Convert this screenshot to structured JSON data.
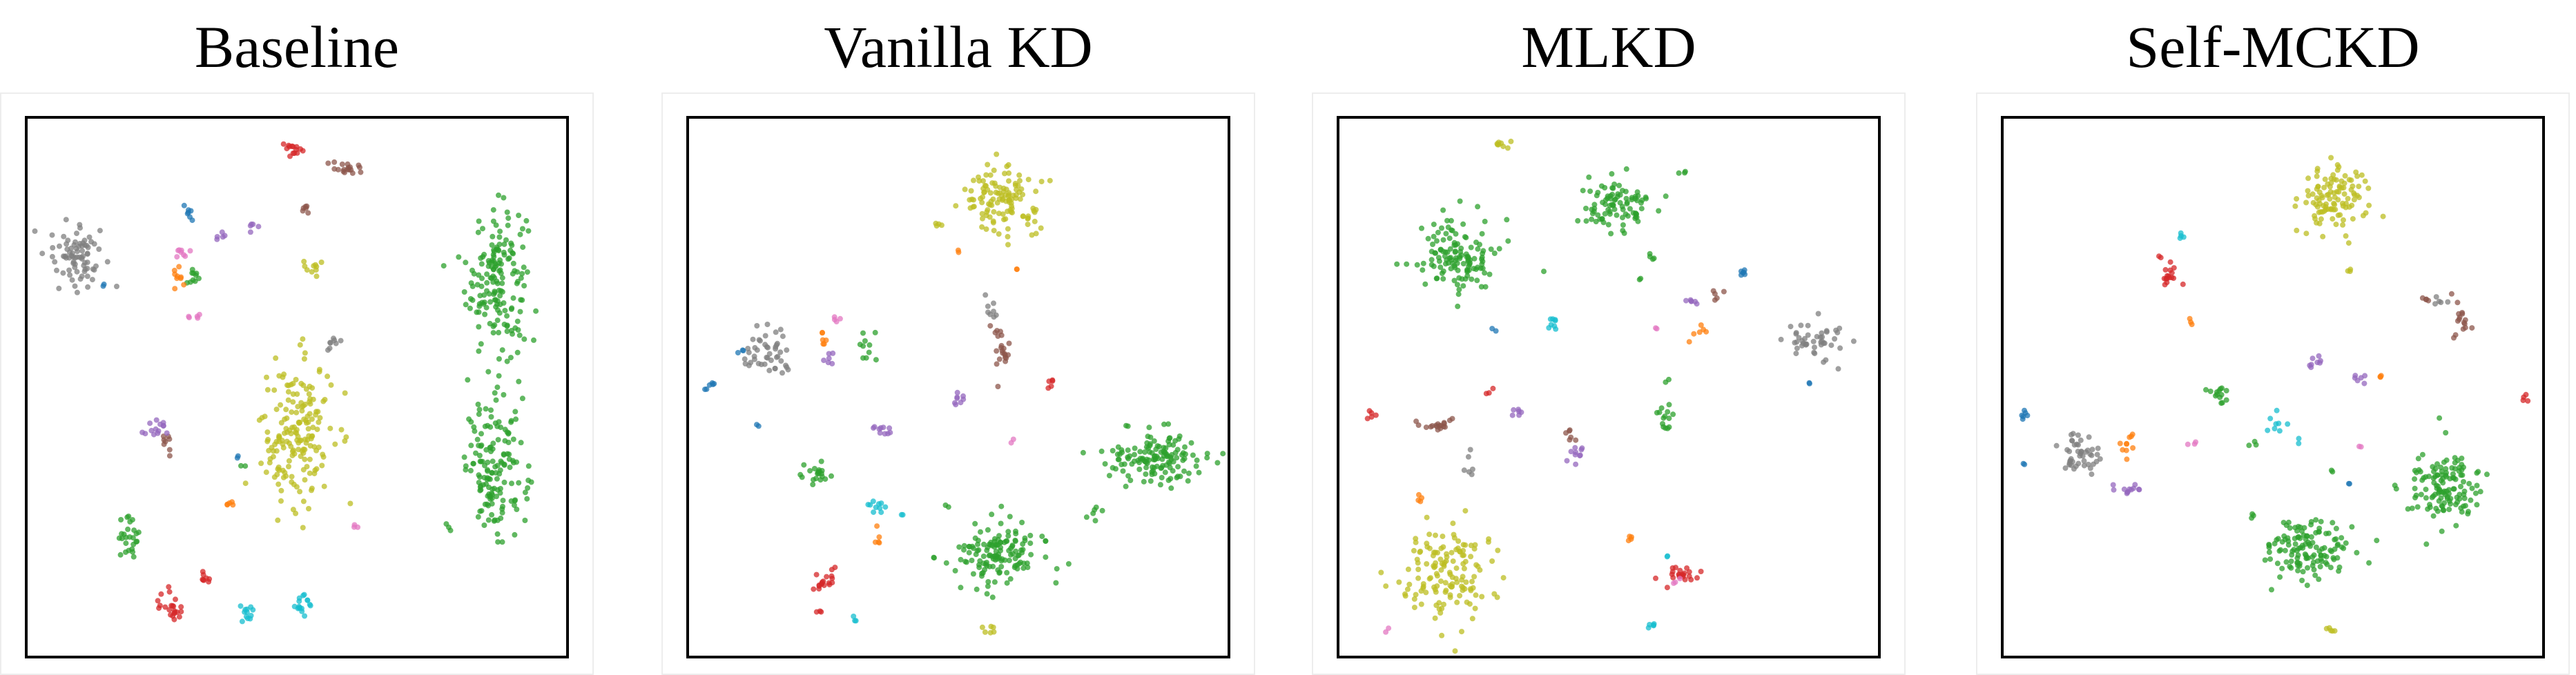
{
  "chart_data": [
    {
      "type": "scatter",
      "title": "Baseline",
      "xlim": [
        0,
        100
      ],
      "ylim": [
        0,
        100
      ],
      "grid": false,
      "ticks": false,
      "clusters": [
        {
          "color": "#2ca02c",
          "cx": 87,
          "cy": 70,
          "sx": 2.8,
          "sy": 7,
          "n": 170
        },
        {
          "color": "#2ca02c",
          "cx": 87,
          "cy": 35,
          "sx": 2.8,
          "sy": 6,
          "n": 150
        },
        {
          "color": "#bcbd22",
          "cx": 50,
          "cy": 41,
          "sx": 3.3,
          "sy": 7,
          "n": 180
        },
        {
          "color": "#7f7f7f",
          "cx": 9,
          "cy": 75,
          "sx": 2.6,
          "sy": 3,
          "n": 80
        },
        {
          "color": "#d62728",
          "cx": 27,
          "cy": 9,
          "sx": 1.3,
          "sy": 1.4,
          "n": 22
        },
        {
          "color": "#d62728",
          "cx": 33,
          "cy": 15,
          "sx": 0.6,
          "sy": 0.8,
          "n": 8
        },
        {
          "color": "#d62728",
          "cx": 49,
          "cy": 94,
          "sx": 0.8,
          "sy": 0.8,
          "n": 14
        },
        {
          "color": "#17becf",
          "cx": 41,
          "cy": 8,
          "sx": 0.8,
          "sy": 0.9,
          "n": 12
        },
        {
          "color": "#17becf",
          "cx": 51,
          "cy": 10,
          "sx": 0.9,
          "sy": 1.2,
          "n": 16
        },
        {
          "color": "#2ca02c",
          "cx": 19,
          "cy": 22,
          "sx": 1.5,
          "sy": 2.5,
          "n": 26
        },
        {
          "color": "#2ca02c",
          "cx": 31,
          "cy": 70,
          "sx": 1.0,
          "sy": 1.2,
          "n": 10
        },
        {
          "color": "#8c564b",
          "cx": 59,
          "cy": 91,
          "sx": 1.5,
          "sy": 0.8,
          "n": 18
        },
        {
          "color": "#8c564b",
          "cx": 52,
          "cy": 83,
          "sx": 0.5,
          "sy": 0.6,
          "n": 6
        },
        {
          "color": "#8c564b",
          "cx": 26,
          "cy": 39,
          "sx": 0.6,
          "sy": 1.5,
          "n": 8
        },
        {
          "color": "#9467bd",
          "cx": 24,
          "cy": 42,
          "sx": 1.4,
          "sy": 0.6,
          "n": 14
        },
        {
          "color": "#9467bd",
          "cx": 42,
          "cy": 80,
          "sx": 0.6,
          "sy": 0.6,
          "n": 5
        },
        {
          "color": "#9467bd",
          "cx": 36,
          "cy": 78,
          "sx": 0.5,
          "sy": 0.6,
          "n": 5
        },
        {
          "color": "#1f77b4",
          "cx": 30,
          "cy": 82,
          "sx": 0.5,
          "sy": 0.8,
          "n": 7
        },
        {
          "color": "#1f77b4",
          "cx": 14,
          "cy": 69,
          "sx": 0.3,
          "sy": 0.3,
          "n": 2
        },
        {
          "color": "#1f77b4",
          "cx": 39,
          "cy": 37,
          "sx": 0.3,
          "sy": 0.3,
          "n": 2
        },
        {
          "color": "#e377c2",
          "cx": 29,
          "cy": 75,
          "sx": 0.8,
          "sy": 0.8,
          "n": 8
        },
        {
          "color": "#e377c2",
          "cx": 31,
          "cy": 63,
          "sx": 0.6,
          "sy": 0.5,
          "n": 5
        },
        {
          "color": "#e377c2",
          "cx": 61,
          "cy": 24,
          "sx": 0.4,
          "sy": 0.3,
          "n": 3
        },
        {
          "color": "#ff7f0e",
          "cx": 28,
          "cy": 70,
          "sx": 0.7,
          "sy": 1.3,
          "n": 9
        },
        {
          "color": "#ff7f0e",
          "cx": 37,
          "cy": 28,
          "sx": 0.9,
          "sy": 0.4,
          "n": 5
        },
        {
          "color": "#bcbd22",
          "cx": 53,
          "cy": 72,
          "sx": 1.0,
          "sy": 0.8,
          "n": 10
        },
        {
          "color": "#7f7f7f",
          "cx": 57,
          "cy": 58,
          "sx": 0.6,
          "sy": 0.9,
          "n": 8
        },
        {
          "color": "#2ca02c",
          "cx": 40,
          "cy": 36,
          "sx": 0.4,
          "sy": 0.4,
          "n": 2
        },
        {
          "color": "#2ca02c",
          "cx": 78,
          "cy": 24,
          "sx": 0.4,
          "sy": 0.6,
          "n": 3
        }
      ]
    },
    {
      "type": "scatter",
      "title": "Vanilla KD",
      "xlim": [
        0,
        100
      ],
      "ylim": [
        0,
        100
      ],
      "grid": false,
      "ticks": false,
      "clusters": [
        {
          "color": "#bcbd22",
          "cx": 58,
          "cy": 85,
          "sx": 3.4,
          "sy": 3.2,
          "n": 120
        },
        {
          "color": "#2ca02c",
          "cx": 87,
          "cy": 37,
          "sx": 4.5,
          "sy": 2.5,
          "n": 140
        },
        {
          "color": "#2ca02c",
          "cx": 58,
          "cy": 19,
          "sx": 4.5,
          "sy": 3.0,
          "n": 140
        },
        {
          "color": "#7f7f7f",
          "cx": 14,
          "cy": 56,
          "sx": 2.0,
          "sy": 2.2,
          "n": 45
        },
        {
          "color": "#d62728",
          "cx": 25,
          "cy": 14,
          "sx": 1.2,
          "sy": 1.3,
          "n": 18
        },
        {
          "color": "#d62728",
          "cx": 24,
          "cy": 8,
          "sx": 0.4,
          "sy": 0.4,
          "n": 3
        },
        {
          "color": "#d62728",
          "cx": 67,
          "cy": 51,
          "sx": 0.5,
          "sy": 0.7,
          "n": 5
        },
        {
          "color": "#17becf",
          "cx": 31,
          "cy": 7,
          "sx": 0.4,
          "sy": 0.4,
          "n": 3
        },
        {
          "color": "#17becf",
          "cx": 35,
          "cy": 28,
          "sx": 0.9,
          "sy": 0.6,
          "n": 10
        },
        {
          "color": "#17becf",
          "cx": 39,
          "cy": 26,
          "sx": 0.3,
          "sy": 0.3,
          "n": 2
        },
        {
          "color": "#2ca02c",
          "cx": 24,
          "cy": 34,
          "sx": 1.3,
          "sy": 1.0,
          "n": 20
        },
        {
          "color": "#2ca02c",
          "cx": 33,
          "cy": 58,
          "sx": 1.0,
          "sy": 1.0,
          "n": 10
        },
        {
          "color": "#2ca02c",
          "cx": 75,
          "cy": 26,
          "sx": 0.7,
          "sy": 0.9,
          "n": 6
        },
        {
          "color": "#8c564b",
          "cx": 58,
          "cy": 57,
          "sx": 1.0,
          "sy": 3.0,
          "n": 22
        },
        {
          "color": "#9467bd",
          "cx": 50,
          "cy": 48,
          "sx": 0.7,
          "sy": 0.7,
          "n": 8
        },
        {
          "color": "#9467bd",
          "cx": 36,
          "cy": 42,
          "sx": 1.0,
          "sy": 0.6,
          "n": 10
        },
        {
          "color": "#9467bd",
          "cx": 26,
          "cy": 55,
          "sx": 0.8,
          "sy": 0.6,
          "n": 6
        },
        {
          "color": "#1f77b4",
          "cx": 4,
          "cy": 50,
          "sx": 0.5,
          "sy": 0.5,
          "n": 6
        },
        {
          "color": "#1f77b4",
          "cx": 10,
          "cy": 57,
          "sx": 0.4,
          "sy": 0.4,
          "n": 3
        },
        {
          "color": "#1f77b4",
          "cx": 13,
          "cy": 43,
          "sx": 0.3,
          "sy": 0.3,
          "n": 2
        },
        {
          "color": "#e377c2",
          "cx": 28,
          "cy": 63,
          "sx": 0.6,
          "sy": 0.4,
          "n": 4
        },
        {
          "color": "#e377c2",
          "cx": 60,
          "cy": 40,
          "sx": 0.3,
          "sy": 0.3,
          "n": 2
        },
        {
          "color": "#ff7f0e",
          "cx": 25,
          "cy": 59,
          "sx": 0.4,
          "sy": 1.0,
          "n": 6
        },
        {
          "color": "#ff7f0e",
          "cx": 35,
          "cy": 22,
          "sx": 0.3,
          "sy": 1.2,
          "n": 5
        },
        {
          "color": "#ff7f0e",
          "cx": 50,
          "cy": 75,
          "sx": 0.3,
          "sy": 0.3,
          "n": 2
        },
        {
          "color": "#ff7f0e",
          "cx": 61,
          "cy": 72,
          "sx": 0.3,
          "sy": 0.3,
          "n": 2
        },
        {
          "color": "#bcbd22",
          "cx": 46,
          "cy": 80,
          "sx": 0.6,
          "sy": 0.5,
          "n": 4
        },
        {
          "color": "#bcbd22",
          "cx": 56,
          "cy": 5,
          "sx": 0.8,
          "sy": 0.4,
          "n": 6
        },
        {
          "color": "#7f7f7f",
          "cx": 56,
          "cy": 65,
          "sx": 0.6,
          "sy": 1.0,
          "n": 8
        },
        {
          "color": "#2ca02c",
          "cx": 48,
          "cy": 28,
          "sx": 0.3,
          "sy": 0.3,
          "n": 2
        }
      ]
    },
    {
      "type": "scatter",
      "title": "MLKD",
      "xlim": [
        0,
        100
      ],
      "ylim": [
        0,
        100
      ],
      "grid": false,
      "ticks": false,
      "clusters": [
        {
          "color": "#2ca02c",
          "cx": 22,
          "cy": 74,
          "sx": 3.6,
          "sy": 4.0,
          "n": 130
        },
        {
          "color": "#2ca02c",
          "cx": 51,
          "cy": 84,
          "sx": 3.2,
          "sy": 2.5,
          "n": 90
        },
        {
          "color": "#bcbd22",
          "cx": 20,
          "cy": 16,
          "sx": 4.0,
          "sy": 4.0,
          "n": 140
        },
        {
          "color": "#7f7f7f",
          "cx": 88,
          "cy": 59,
          "sx": 2.6,
          "sy": 1.6,
          "n": 45
        },
        {
          "color": "#bcbd22",
          "cx": 30,
          "cy": 95,
          "sx": 0.8,
          "sy": 0.4,
          "n": 8
        },
        {
          "color": "#d62728",
          "cx": 63,
          "cy": 15,
          "sx": 1.5,
          "sy": 1.0,
          "n": 22
        },
        {
          "color": "#d62728",
          "cx": 6,
          "cy": 45,
          "sx": 0.4,
          "sy": 0.6,
          "n": 5
        },
        {
          "color": "#d62728",
          "cx": 28,
          "cy": 49,
          "sx": 0.5,
          "sy": 0.5,
          "n": 3
        },
        {
          "color": "#17becf",
          "cx": 40,
          "cy": 62,
          "sx": 0.6,
          "sy": 0.8,
          "n": 8
        },
        {
          "color": "#17becf",
          "cx": 58,
          "cy": 6,
          "sx": 0.5,
          "sy": 0.5,
          "n": 5
        },
        {
          "color": "#17becf",
          "cx": 61,
          "cy": 19,
          "sx": 0.3,
          "sy": 0.3,
          "n": 2
        },
        {
          "color": "#2ca02c",
          "cx": 61,
          "cy": 44,
          "sx": 1.0,
          "sy": 1.3,
          "n": 14
        },
        {
          "color": "#2ca02c",
          "cx": 61,
          "cy": 51,
          "sx": 0.3,
          "sy": 0.3,
          "n": 2
        },
        {
          "color": "#2ca02c",
          "cx": 58,
          "cy": 74,
          "sx": 0.5,
          "sy": 0.5,
          "n": 4
        },
        {
          "color": "#2ca02c",
          "cx": 64,
          "cy": 90,
          "sx": 0.4,
          "sy": 0.4,
          "n": 3
        },
        {
          "color": "#2ca02c",
          "cx": 56,
          "cy": 70,
          "sx": 0.3,
          "sy": 0.3,
          "n": 2
        },
        {
          "color": "#8c564b",
          "cx": 18,
          "cy": 43,
          "sx": 2.2,
          "sy": 0.6,
          "n": 18
        },
        {
          "color": "#8c564b",
          "cx": 43,
          "cy": 41,
          "sx": 0.8,
          "sy": 0.6,
          "n": 6
        },
        {
          "color": "#8c564b",
          "cx": 70,
          "cy": 67,
          "sx": 0.5,
          "sy": 0.6,
          "n": 5
        },
        {
          "color": "#9467bd",
          "cx": 44,
          "cy": 38,
          "sx": 0.8,
          "sy": 1.0,
          "n": 10
        },
        {
          "color": "#9467bd",
          "cx": 33,
          "cy": 45,
          "sx": 0.5,
          "sy": 0.8,
          "n": 6
        },
        {
          "color": "#9467bd",
          "cx": 66,
          "cy": 66,
          "sx": 0.8,
          "sy": 0.5,
          "n": 6
        },
        {
          "color": "#1f77b4",
          "cx": 75,
          "cy": 71,
          "sx": 0.5,
          "sy": 0.5,
          "n": 6
        },
        {
          "color": "#1f77b4",
          "cx": 29,
          "cy": 61,
          "sx": 0.3,
          "sy": 0.3,
          "n": 2
        },
        {
          "color": "#1f77b4",
          "cx": 87,
          "cy": 51,
          "sx": 0.3,
          "sy": 0.3,
          "n": 2
        },
        {
          "color": "#e377c2",
          "cx": 59,
          "cy": 61,
          "sx": 0.3,
          "sy": 0.3,
          "n": 2
        },
        {
          "color": "#e377c2",
          "cx": 9,
          "cy": 5,
          "sx": 0.3,
          "sy": 0.3,
          "n": 2
        },
        {
          "color": "#e377c2",
          "cx": 62,
          "cy": 14,
          "sx": 0.4,
          "sy": 0.4,
          "n": 3
        },
        {
          "color": "#ff7f0e",
          "cx": 66,
          "cy": 60,
          "sx": 1.0,
          "sy": 0.8,
          "n": 6
        },
        {
          "color": "#ff7f0e",
          "cx": 15,
          "cy": 29,
          "sx": 0.5,
          "sy": 0.5,
          "n": 4
        },
        {
          "color": "#ff7f0e",
          "cx": 54,
          "cy": 22,
          "sx": 0.6,
          "sy": 0.4,
          "n": 4
        },
        {
          "color": "#7f7f7f",
          "cx": 24,
          "cy": 36,
          "sx": 0.4,
          "sy": 1.0,
          "n": 6
        }
      ]
    },
    {
      "type": "scatter",
      "title": "Self-MCKD",
      "xlim": [
        0,
        100
      ],
      "ylim": [
        0,
        100
      ],
      "grid": false,
      "ticks": false,
      "clusters": [
        {
          "color": "#bcbd22",
          "cx": 61,
          "cy": 85,
          "sx": 2.8,
          "sy": 3.2,
          "n": 110
        },
        {
          "color": "#2ca02c",
          "cx": 56,
          "cy": 20,
          "sx": 4.5,
          "sy": 2.8,
          "n": 130
        },
        {
          "color": "#2ca02c",
          "cx": 82,
          "cy": 31,
          "sx": 3.2,
          "sy": 3.5,
          "n": 130
        },
        {
          "color": "#7f7f7f",
          "cx": 14,
          "cy": 37,
          "sx": 2.0,
          "sy": 1.8,
          "n": 45
        },
        {
          "color": "#d62728",
          "cx": 31,
          "cy": 70,
          "sx": 1.0,
          "sy": 1.4,
          "n": 16
        },
        {
          "color": "#d62728",
          "cx": 29,
          "cy": 74,
          "sx": 0.3,
          "sy": 0.3,
          "n": 2
        },
        {
          "color": "#d62728",
          "cx": 97,
          "cy": 48,
          "sx": 0.5,
          "sy": 0.5,
          "n": 4
        },
        {
          "color": "#17becf",
          "cx": 33,
          "cy": 78,
          "sx": 0.4,
          "sy": 0.5,
          "n": 4
        },
        {
          "color": "#17becf",
          "cx": 51,
          "cy": 43,
          "sx": 0.8,
          "sy": 0.8,
          "n": 8
        },
        {
          "color": "#17becf",
          "cx": 55,
          "cy": 40,
          "sx": 0.3,
          "sy": 0.3,
          "n": 2
        },
        {
          "color": "#2ca02c",
          "cx": 40,
          "cy": 49,
          "sx": 1.0,
          "sy": 0.9,
          "n": 14
        },
        {
          "color": "#2ca02c",
          "cx": 46,
          "cy": 39,
          "sx": 0.4,
          "sy": 0.4,
          "n": 3
        },
        {
          "color": "#2ca02c",
          "cx": 46,
          "cy": 26,
          "sx": 0.4,
          "sy": 0.4,
          "n": 3
        },
        {
          "color": "#2ca02c",
          "cx": 61,
          "cy": 34,
          "sx": 0.3,
          "sy": 0.3,
          "n": 2
        },
        {
          "color": "#8c564b",
          "cx": 85,
          "cy": 62,
          "sx": 1.0,
          "sy": 2.3,
          "n": 16
        },
        {
          "color": "#8c564b",
          "cx": 78,
          "cy": 66,
          "sx": 0.6,
          "sy": 0.6,
          "n": 4
        },
        {
          "color": "#9467bd",
          "cx": 58,
          "cy": 55,
          "sx": 1.0,
          "sy": 0.9,
          "n": 8
        },
        {
          "color": "#9467bd",
          "cx": 66,
          "cy": 52,
          "sx": 0.7,
          "sy": 0.9,
          "n": 6
        },
        {
          "color": "#9467bd",
          "cx": 23,
          "cy": 31,
          "sx": 1.4,
          "sy": 0.6,
          "n": 12
        },
        {
          "color": "#1f77b4",
          "cx": 4,
          "cy": 45,
          "sx": 0.5,
          "sy": 0.5,
          "n": 6
        },
        {
          "color": "#1f77b4",
          "cx": 4,
          "cy": 36,
          "sx": 0.3,
          "sy": 0.3,
          "n": 2
        },
        {
          "color": "#1f77b4",
          "cx": 64,
          "cy": 32,
          "sx": 0.3,
          "sy": 0.3,
          "n": 2
        },
        {
          "color": "#e377c2",
          "cx": 35,
          "cy": 40,
          "sx": 0.5,
          "sy": 0.4,
          "n": 3
        },
        {
          "color": "#e377c2",
          "cx": 66,
          "cy": 39,
          "sx": 0.3,
          "sy": 0.3,
          "n": 2
        },
        {
          "color": "#ff7f0e",
          "cx": 23,
          "cy": 39,
          "sx": 1.0,
          "sy": 1.4,
          "n": 10
        },
        {
          "color": "#ff7f0e",
          "cx": 35,
          "cy": 62,
          "sx": 0.4,
          "sy": 0.6,
          "n": 3
        },
        {
          "color": "#ff7f0e",
          "cx": 70,
          "cy": 52,
          "sx": 0.4,
          "sy": 0.4,
          "n": 3
        },
        {
          "color": "#bcbd22",
          "cx": 64,
          "cy": 72,
          "sx": 0.4,
          "sy": 0.4,
          "n": 3
        },
        {
          "color": "#bcbd22",
          "cx": 61,
          "cy": 5,
          "sx": 0.8,
          "sy": 0.4,
          "n": 5
        },
        {
          "color": "#7f7f7f",
          "cx": 81,
          "cy": 66,
          "sx": 0.6,
          "sy": 0.6,
          "n": 5
        }
      ]
    }
  ]
}
